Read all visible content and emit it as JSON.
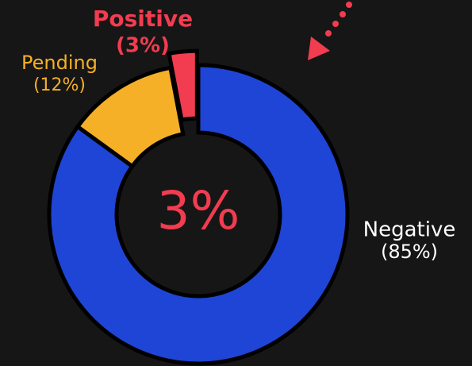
{
  "chart_data": {
    "type": "donut",
    "categories": [
      "Negative",
      "Pending",
      "Positive"
    ],
    "values": [
      85,
      12,
      3
    ],
    "value_labels": [
      "(85%)",
      "(12%)",
      "(3%)"
    ],
    "colors": [
      "#1f45d6",
      "#f5b027",
      "#f23c50"
    ],
    "center_label": "3%",
    "exploded": [
      false,
      false,
      true
    ]
  }
}
